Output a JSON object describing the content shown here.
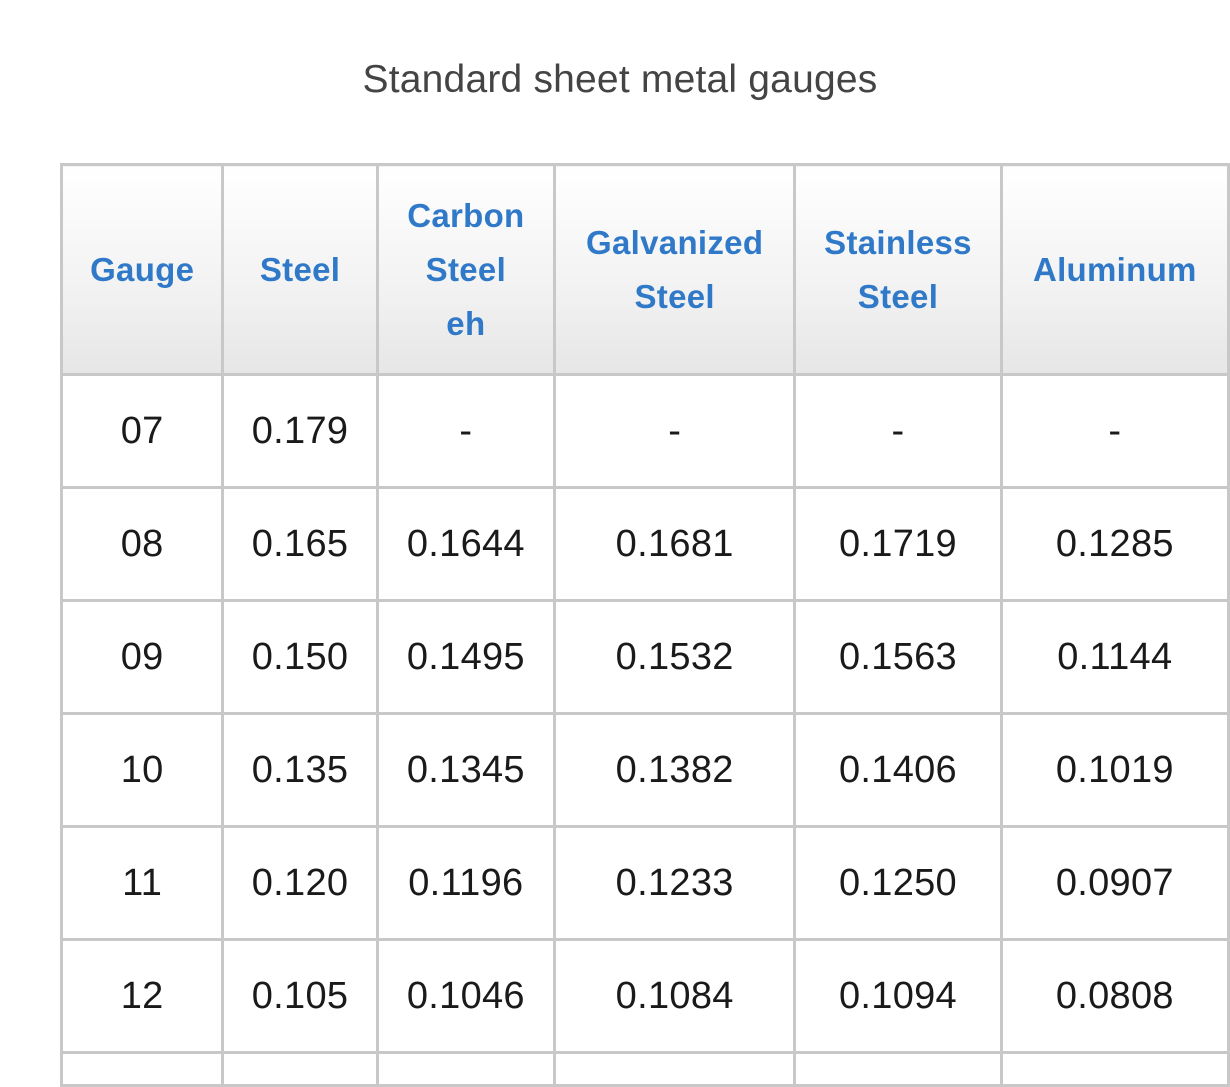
{
  "caption": "Standard sheet metal gauges",
  "table": {
    "headers": [
      [
        "Gauge"
      ],
      [
        "Steel"
      ],
      [
        "Carbon",
        "Steel",
        "eh"
      ],
      [
        "Galvanized",
        "Steel"
      ],
      [
        "Stainless",
        "Steel"
      ],
      [
        "Aluminum"
      ]
    ],
    "rows": [
      [
        "07",
        "0.179",
        "-",
        "-",
        "-",
        "-"
      ],
      [
        "08",
        "0.165",
        "0.1644",
        "0.1681",
        "0.1719",
        "0.1285"
      ],
      [
        "09",
        "0.150",
        "0.1495",
        "0.1532",
        "0.1563",
        "0.1144"
      ],
      [
        "10",
        "0.135",
        "0.1345",
        "0.1382",
        "0.1406",
        "0.1019"
      ],
      [
        "11",
        "0.120",
        "0.1196",
        "0.1233",
        "0.1250",
        "0.0907"
      ],
      [
        "12",
        "0.105",
        "0.1046",
        "0.1084",
        "0.1094",
        "0.0808"
      ]
    ]
  },
  "colors": {
    "header_text": "#2f79c8",
    "border": "#c8c8c8",
    "caption_text": "#444444"
  }
}
